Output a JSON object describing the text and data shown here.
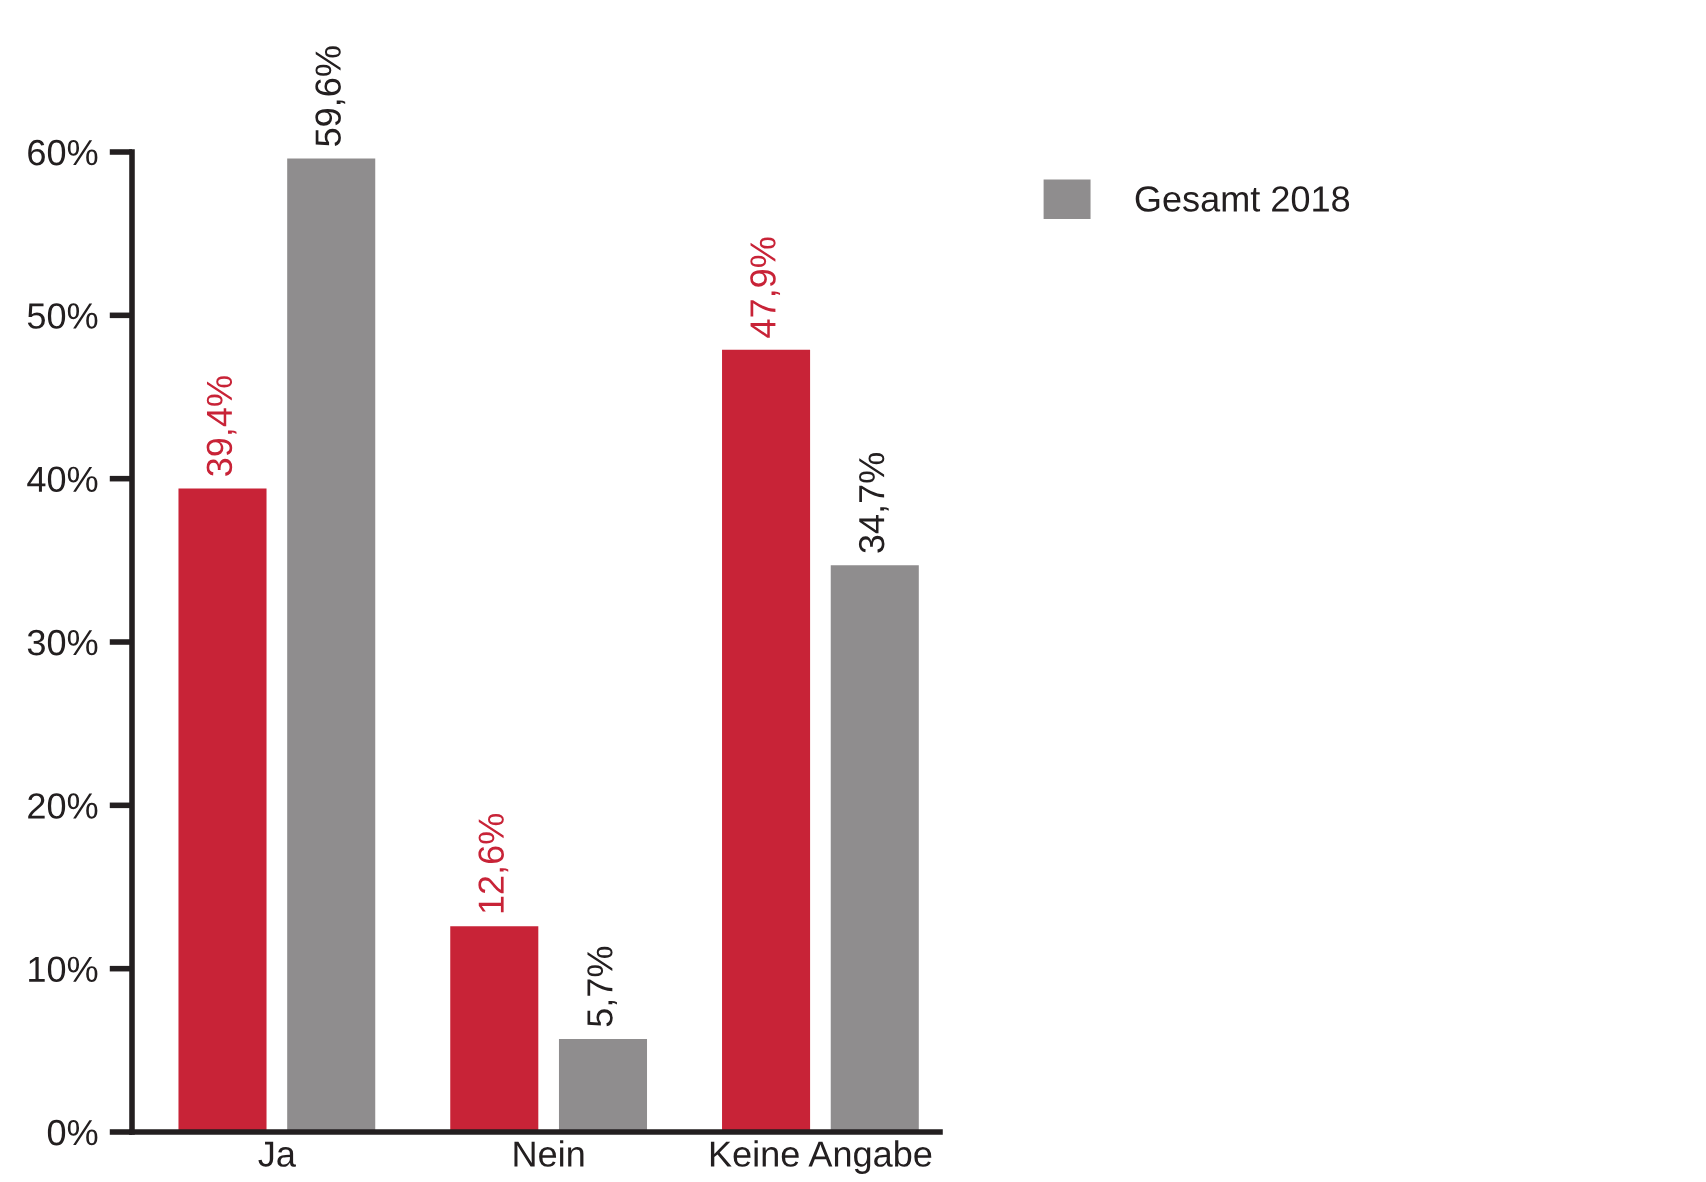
{
  "chart_data": {
    "type": "bar",
    "categories": [
      "Ja",
      "Nein",
      "Keine Angabe"
    ],
    "series": [
      {
        "color": "#c82337",
        "values": [
          39.4,
          12.6,
          47.9
        ],
        "value_labels": [
          "39,4%",
          "12,6%",
          "47,9%"
        ]
      },
      {
        "name": "Gesamt 2018",
        "color": "#8f8d8e",
        "values": [
          59.6,
          5.7,
          34.7
        ],
        "value_labels": [
          "59,6%",
          "5,7%",
          "34,7%"
        ]
      }
    ],
    "ylim": [
      0,
      60
    ],
    "yticks": [
      {
        "value": 0,
        "label": "0%"
      },
      {
        "value": 10,
        "label": "10%"
      },
      {
        "value": 20,
        "label": "20%"
      },
      {
        "value": 30,
        "label": "30%"
      },
      {
        "value": 40,
        "label": "40%"
      },
      {
        "value": 50,
        "label": "50%"
      },
      {
        "value": 60,
        "label": "60%"
      }
    ],
    "grid": false,
    "legend": "right"
  }
}
